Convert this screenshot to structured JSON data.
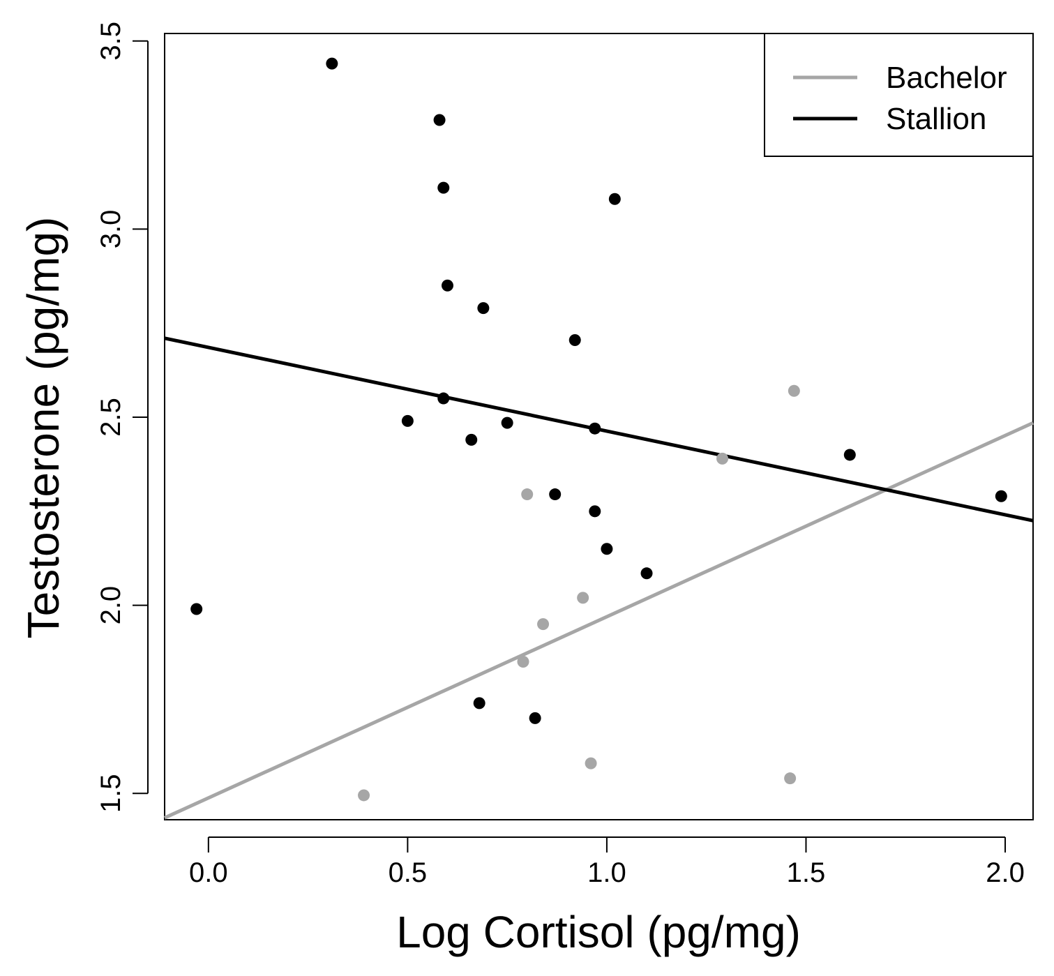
{
  "chart_data": {
    "type": "scatter",
    "title": "",
    "xlabel": "Log Cortisol (pg/mg)",
    "ylabel": "Testosterone (pg/mg)",
    "xlim": [
      -0.11,
      2.07
    ],
    "ylim": [
      1.43,
      3.52
    ],
    "xticks": [
      0.0,
      0.5,
      1.0,
      1.5,
      2.0
    ],
    "xtick_labels": [
      "0.0",
      "0.5",
      "1.0",
      "1.5",
      "2.0"
    ],
    "yticks": [
      1.5,
      2.0,
      2.5,
      3.0,
      3.5
    ],
    "ytick_labels": [
      "1.5",
      "2.0",
      "2.5",
      "3.0",
      "3.5"
    ],
    "grid": false,
    "legend_position": "top-right",
    "series": [
      {
        "name": "Bachelor",
        "color": "#a6a6a6",
        "points": [
          {
            "x": 0.39,
            "y": 1.495
          },
          {
            "x": 0.8,
            "y": 2.295
          },
          {
            "x": 0.84,
            "y": 1.95
          },
          {
            "x": 0.79,
            "y": 1.85
          },
          {
            "x": 0.94,
            "y": 2.02
          },
          {
            "x": 0.96,
            "y": 1.58
          },
          {
            "x": 1.29,
            "y": 2.39
          },
          {
            "x": 1.47,
            "y": 2.57
          },
          {
            "x": 1.46,
            "y": 1.54
          }
        ],
        "fit": {
          "x": [
            -0.11,
            2.07
          ],
          "y": [
            1.435,
            2.485
          ]
        }
      },
      {
        "name": "Stallion",
        "color": "#000000",
        "points": [
          {
            "x": 0.31,
            "y": 3.44
          },
          {
            "x": 0.58,
            "y": 3.29
          },
          {
            "x": 0.59,
            "y": 3.11
          },
          {
            "x": 1.02,
            "y": 3.08
          },
          {
            "x": 0.6,
            "y": 2.85
          },
          {
            "x": 0.69,
            "y": 2.79
          },
          {
            "x": 0.92,
            "y": 2.705
          },
          {
            "x": 0.59,
            "y": 2.55
          },
          {
            "x": 0.5,
            "y": 2.49
          },
          {
            "x": 0.75,
            "y": 2.485
          },
          {
            "x": 0.97,
            "y": 2.47
          },
          {
            "x": 0.66,
            "y": 2.44
          },
          {
            "x": 1.61,
            "y": 2.4
          },
          {
            "x": 0.87,
            "y": 2.295
          },
          {
            "x": 1.99,
            "y": 2.29
          },
          {
            "x": 0.97,
            "y": 2.25
          },
          {
            "x": 1.0,
            "y": 2.15
          },
          {
            "x": 1.1,
            "y": 2.085
          },
          {
            "x": -0.03,
            "y": 1.99
          },
          {
            "x": 0.68,
            "y": 1.74
          },
          {
            "x": 0.82,
            "y": 1.7
          }
        ],
        "fit": {
          "x": [
            -0.11,
            2.07
          ],
          "y": [
            2.71,
            2.225
          ]
        }
      }
    ]
  }
}
